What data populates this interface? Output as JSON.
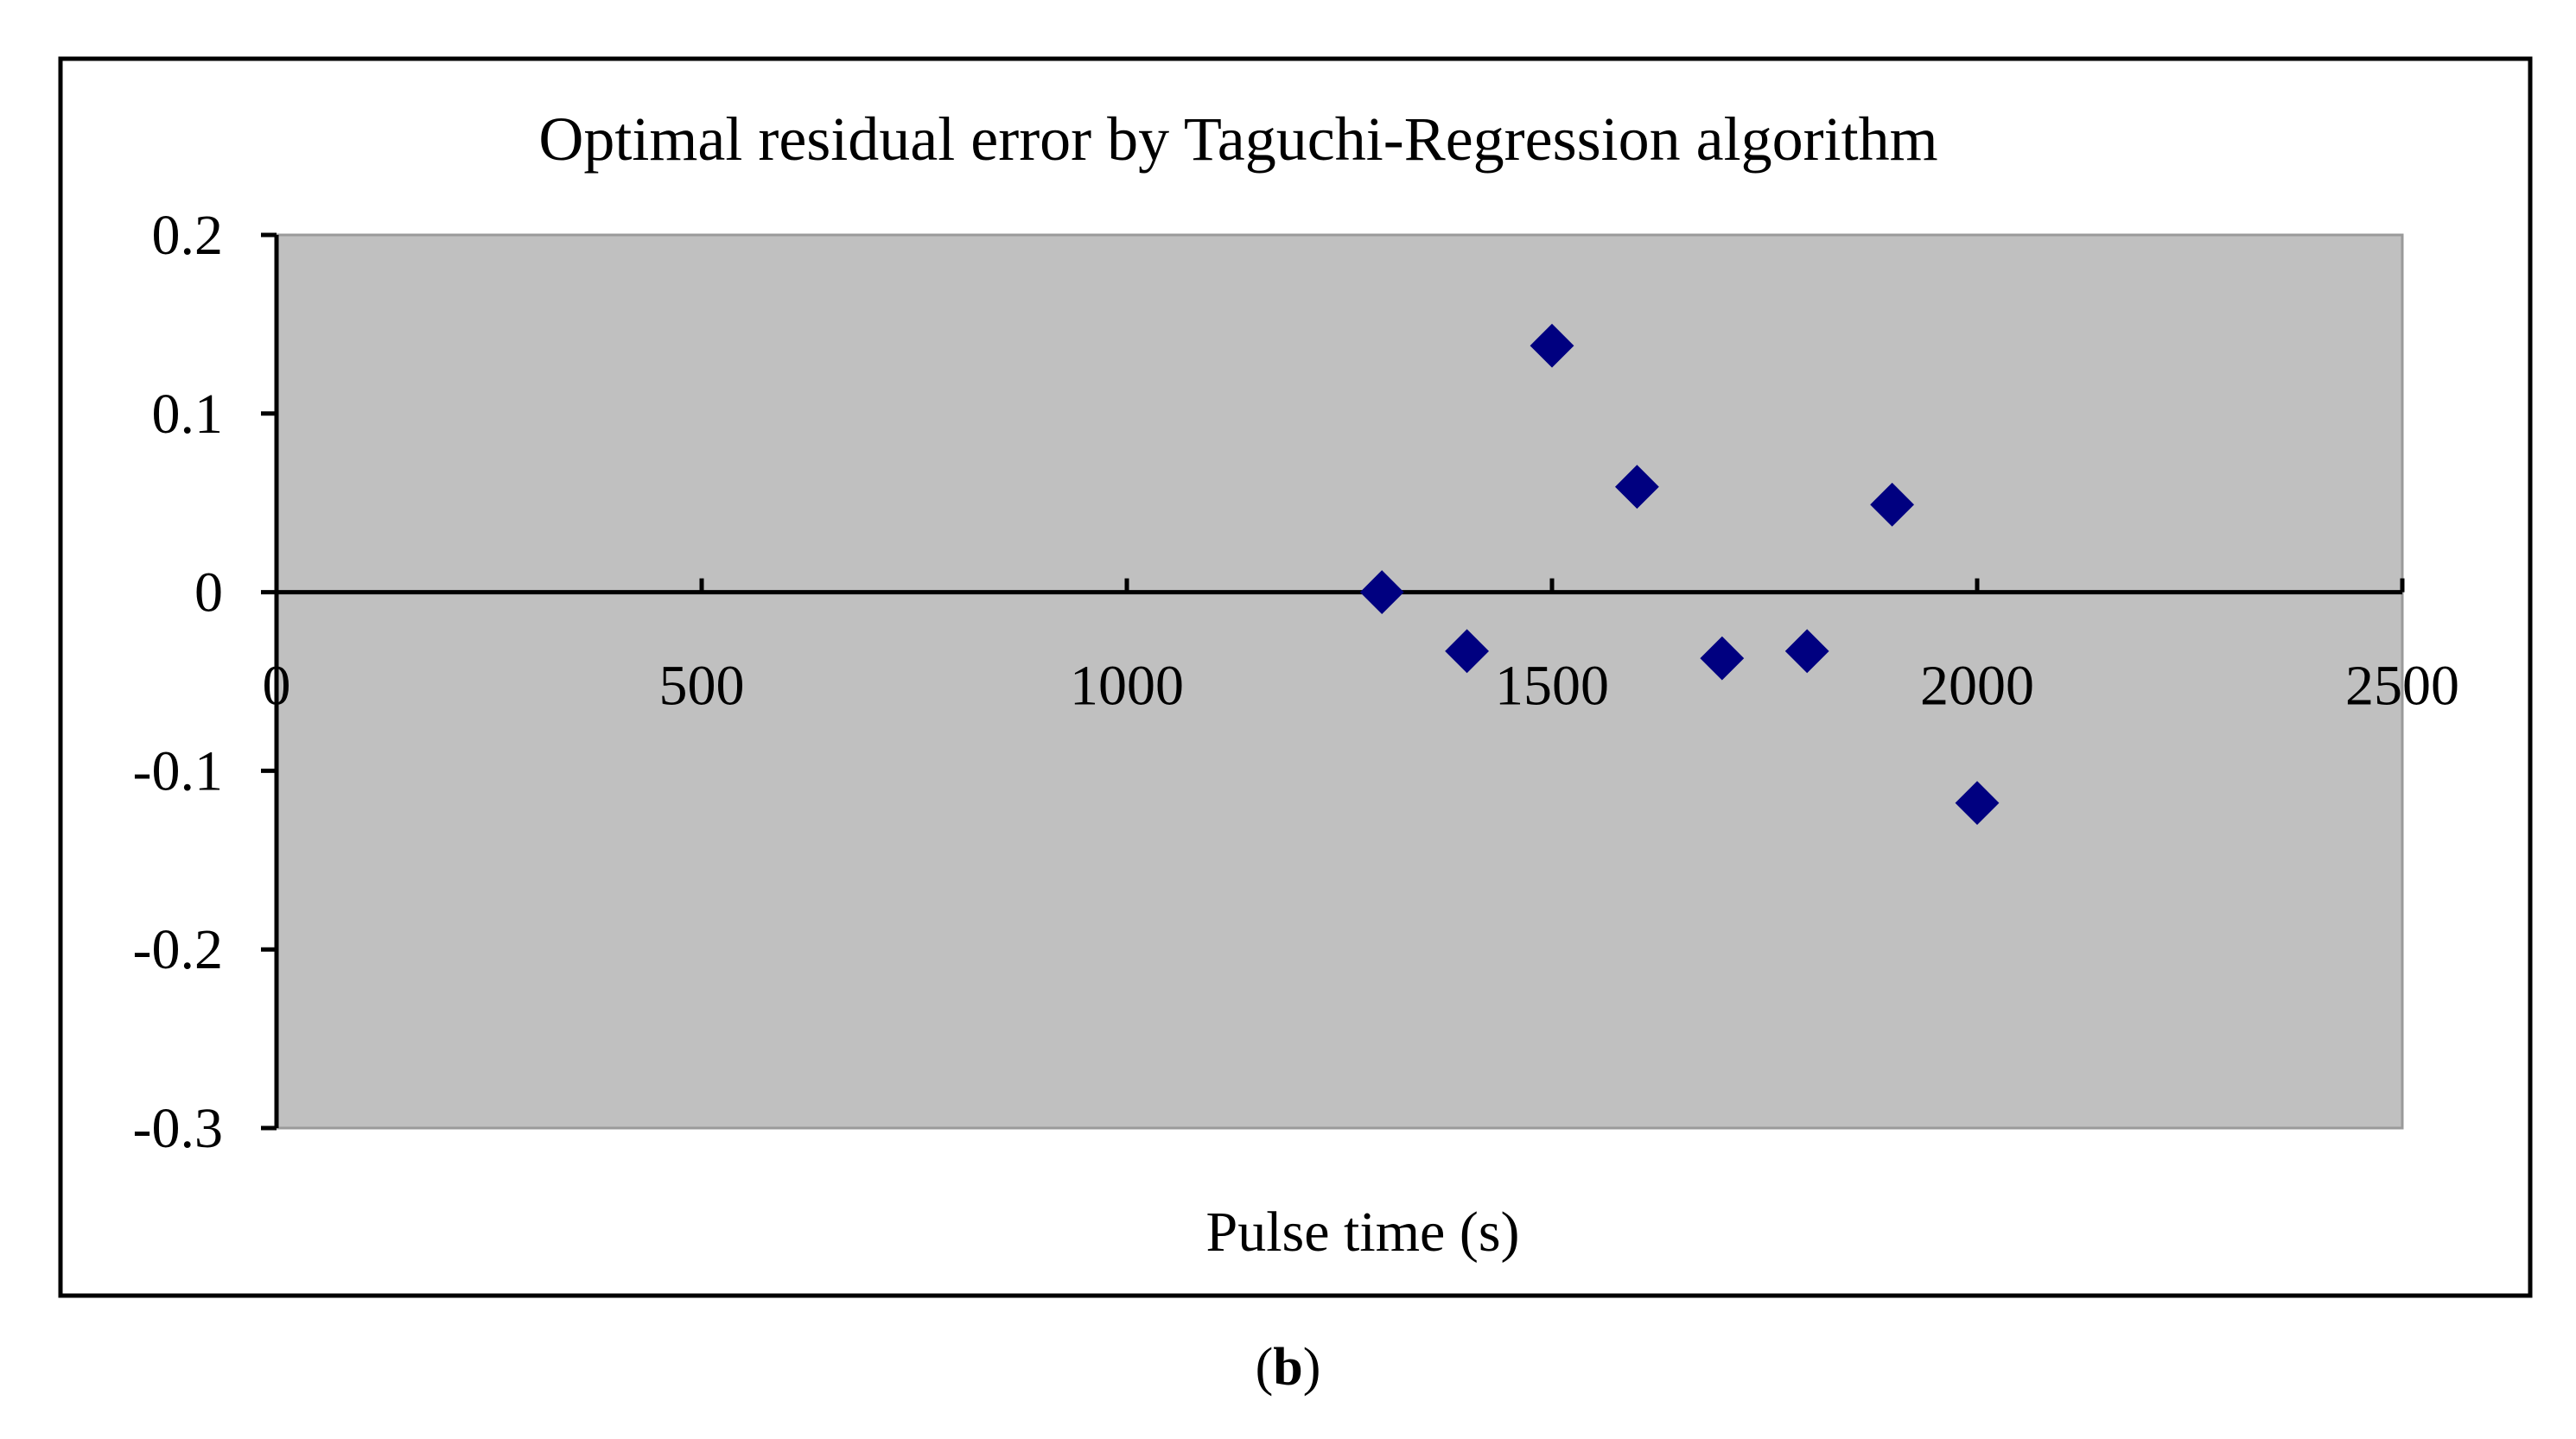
{
  "chart_data": {
    "type": "scatter",
    "title": "Optimal residual error by Taguchi-Regression algorithm",
    "xlabel": "Pulse time (s)",
    "ylabel": "",
    "xlim": [
      0,
      2500
    ],
    "ylim": [
      -0.3,
      0.2
    ],
    "x_ticks": [
      0,
      500,
      1000,
      1500,
      2000,
      2500
    ],
    "y_ticks": [
      0.2,
      0.1,
      0,
      -0.1,
      -0.2,
      -0.3
    ],
    "x_tick_labels": [
      "0",
      "500",
      "1000",
      "1500",
      "2000",
      "2500"
    ],
    "y_tick_labels": [
      "0.2",
      "0.1",
      "0",
      "-0.1",
      "-0.2",
      "-0.3"
    ],
    "grid": false,
    "legend": false,
    "plot_background": "#c0c0c0",
    "marker": "diamond",
    "marker_color": "#000080",
    "series": [
      {
        "points": [
          {
            "x": 1300,
            "y": 0.0
          },
          {
            "x": 1400,
            "y": -0.033
          },
          {
            "x": 1500,
            "y": 0.138
          },
          {
            "x": 1600,
            "y": 0.059
          },
          {
            "x": 1700,
            "y": -0.037
          },
          {
            "x": 1800,
            "y": -0.033
          },
          {
            "x": 1900,
            "y": 0.049
          },
          {
            "x": 2000,
            "y": -0.118
          }
        ]
      }
    ]
  },
  "caption": {
    "open": "(",
    "letter": "b",
    "close": ")"
  }
}
